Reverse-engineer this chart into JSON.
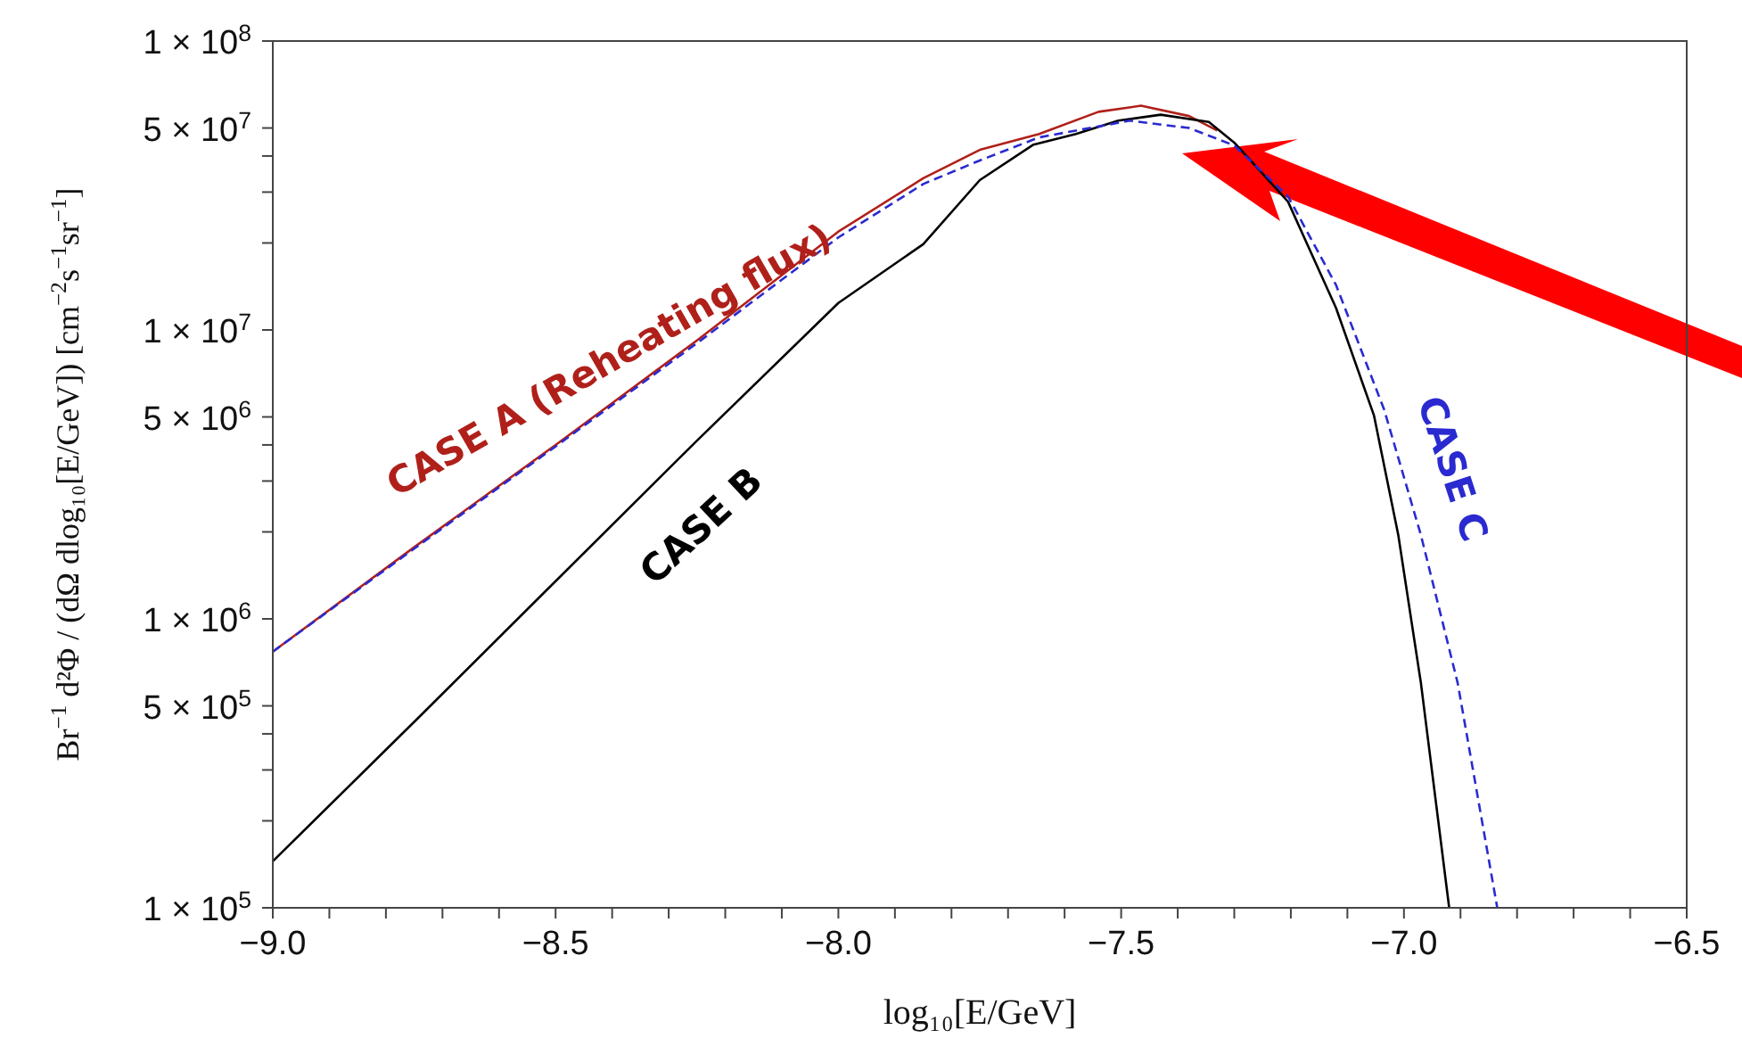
{
  "chart_data": {
    "type": "line",
    "xlabel": "log₁₀[E/GeV]",
    "ylabel": "Br$^{−1}$ d²Φ / (dΩ dlog₁₀[E/GeV]) [cm$^{−2}$s$^{−1}$sr$^{−1}$]",
    "log": "y",
    "marker": "none",
    "xlim": [
      -9,
      -6.5
    ],
    "ylim": [
      100000,
      100000000
    ],
    "xticks": [
      {
        "value": -9,
        "label": "−9.0"
      },
      {
        "value": -8.9,
        "label": null
      },
      {
        "value": -8.8,
        "label": null
      },
      {
        "value": -8.7,
        "label": null
      },
      {
        "value": -8.6,
        "label": null
      },
      {
        "value": -8.5,
        "label": "−8.5"
      },
      {
        "value": -8.4,
        "label": null
      },
      {
        "value": -8.3,
        "label": null
      },
      {
        "value": -8.2,
        "label": null
      },
      {
        "value": -8.1,
        "label": null
      },
      {
        "value": -8,
        "label": "−8.0"
      },
      {
        "value": -7.9,
        "label": null
      },
      {
        "value": -7.8,
        "label": null
      },
      {
        "value": -7.7,
        "label": null
      },
      {
        "value": -7.6,
        "label": null
      },
      {
        "value": -7.5,
        "label": "−7.5"
      },
      {
        "value": -7.4,
        "label": null
      },
      {
        "value": -7.3,
        "label": null
      },
      {
        "value": -7.2,
        "label": null
      },
      {
        "value": -7.1,
        "label": null
      },
      {
        "value": -7,
        "label": "−7.0"
      },
      {
        "value": -6.9,
        "label": null
      },
      {
        "value": -6.8,
        "label": null
      },
      {
        "value": -6.7,
        "label": null
      },
      {
        "value": -6.6,
        "label": null
      },
      {
        "value": -6.5,
        "label": "−6.5"
      }
    ],
    "yticks": [
      {
        "value": 100000,
        "label": "1 × 10$^{5}$"
      },
      {
        "value": 200000,
        "label": null
      },
      {
        "value": 300000,
        "label": null
      },
      {
        "value": 400000,
        "label": null
      },
      {
        "value": 500000,
        "label": "5 × 10$^{5}$"
      },
      {
        "value": 1000000,
        "label": "1 × 10$^{6}$"
      },
      {
        "value": 2000000,
        "label": null
      },
      {
        "value": 3000000,
        "label": null
      },
      {
        "value": 4000000,
        "label": null
      },
      {
        "value": 5000000,
        "label": "5 × 10$^{6}$"
      },
      {
        "value": 10000000,
        "label": "1 × 10$^{7}$"
      },
      {
        "value": 20000000,
        "label": null
      },
      {
        "value": 30000000,
        "label": null
      },
      {
        "value": 40000000,
        "label": null
      },
      {
        "value": 50000000,
        "label": "5 × 10$^{7}$"
      },
      {
        "value": 100000000,
        "label": "1 × 10$^{8}$"
      }
    ],
    "series": [
      {
        "name": "CASE A (Reheating flux)",
        "color": "#b0201a",
        "line_style": "solid",
        "x": [
          -9,
          -8.75,
          -8.5,
          -8.25,
          -8,
          -7.85,
          -7.75,
          -7.645,
          -7.54,
          -7.465,
          -7.38,
          -7.33
        ],
        "values": [
          770000,
          1770000,
          4000000,
          9200000,
          21900000,
          33500000,
          42000000,
          47700000,
          56900000,
          59700000,
          55000000,
          49000000
        ]
      },
      {
        "name": "CASE B",
        "color": "#000000",
        "line_style": "solid",
        "x": [
          -9,
          -8.75,
          -8.5,
          -8.25,
          -8,
          -7.85,
          -7.75,
          -7.655,
          -7.58,
          -7.505,
          -7.43,
          -7.345,
          -7.3,
          -7.205,
          -7.12,
          -7.053,
          -7.01,
          -6.97,
          -6.92
        ],
        "values": [
          145000,
          440000,
          1350000,
          4140000,
          12400000,
          19800000,
          33000000,
          43800000,
          47700000,
          53000000,
          55600000,
          52500000,
          44500000,
          27800000,
          11900000,
          5060000,
          1950000,
          600000,
          100000
        ]
      },
      {
        "name": "CASE C",
        "color": "#2a2ad0",
        "line_style": "dashed",
        "x": [
          -9,
          -8.75,
          -8.5,
          -8.25,
          -8,
          -7.85,
          -7.75,
          -7.645,
          -7.485,
          -7.38,
          -7.3,
          -7.205,
          -7.12,
          -7.035,
          -6.97,
          -6.905,
          -6.835
        ],
        "values": [
          770000,
          1750000,
          3950000,
          9000000,
          20900000,
          32000000,
          38600000,
          46400000,
          53000000,
          50000000,
          43500000,
          29000000,
          14300000,
          5300000,
          1950000,
          600000,
          100000
        ]
      }
    ]
  }
}
